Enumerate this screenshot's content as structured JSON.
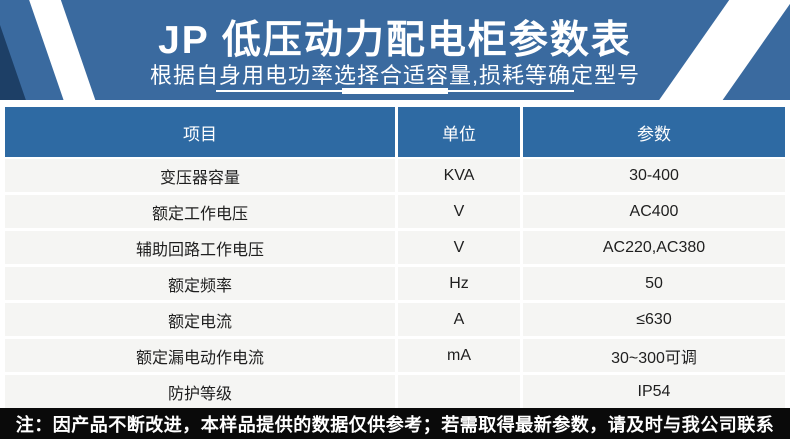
{
  "banner": {
    "title": "JP 低压动力配电柜参数表",
    "subtitle": "根据自身用电功率选择合适容量,损耗等确定型号"
  },
  "table": {
    "headers": [
      "项目",
      "单位",
      "参数"
    ],
    "rows": [
      {
        "item": "变压器容量",
        "unit": "KVA",
        "value": "30-400"
      },
      {
        "item": "额定工作电压",
        "unit": "V",
        "value": "AC400"
      },
      {
        "item": "辅助回路工作电压",
        "unit": "V",
        "value": "AC220,AC380"
      },
      {
        "item": "额定频率",
        "unit": "Hz",
        "value": "50"
      },
      {
        "item": "额定电流",
        "unit": "A",
        "value": "≤630"
      },
      {
        "item": "额定漏电动作电流",
        "unit": "mA",
        "value": "30~300可调"
      },
      {
        "item": "防护等级",
        "unit": "",
        "value": "IP54"
      }
    ]
  },
  "footer": {
    "note": "注：因产品不断改进，本样品提供的数据仅供参考；若需取得最新参数，请及时与我公司联系"
  },
  "colors": {
    "banner_blue": "#3a6a9f",
    "table_header_blue": "#2e6aa3",
    "navy_accent": "#1d3f66",
    "row_bg": "#f5f5f3",
    "note_bg": "#0a0a0a"
  }
}
